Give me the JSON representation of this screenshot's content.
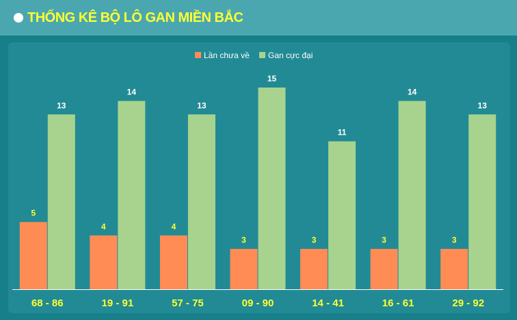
{
  "header": {
    "title": "THỐNG KÊ BỘ LÔ GAN MIỀN BẮC"
  },
  "colors": {
    "page_background": "#167f8a",
    "header_background": "#4aa7b0",
    "panel_background": "#218a95",
    "title": "#ffff33",
    "series_lan_chua_ve": "#ff8c55",
    "series_gan_cuc_dai": "#a8d38e",
    "label_lan_chua_ve": "#ffff33",
    "label_gan_cuc_dai": "#ffffff",
    "category_label": "#ffff33",
    "baseline": "#ffffff"
  },
  "chart_data": {
    "type": "bar",
    "title": "THỐNG KÊ BỘ LÔ GAN MIỀN BẮC",
    "categories": [
      "68 - 86",
      "19 - 91",
      "57 - 75",
      "09 - 90",
      "14 - 41",
      "16 - 61",
      "29 - 92"
    ],
    "series": [
      {
        "name": "Lần chưa về",
        "color": "#ff8c55",
        "values": [
          5,
          4,
          4,
          3,
          3,
          3,
          3
        ]
      },
      {
        "name": "Gan cực đại",
        "color": "#a8d38e",
        "values": [
          13,
          14,
          13,
          15,
          11,
          14,
          13
        ]
      }
    ],
    "ylim": [
      0,
      15
    ],
    "legend_position": "top-center",
    "grid": false,
    "data_labels": true
  }
}
